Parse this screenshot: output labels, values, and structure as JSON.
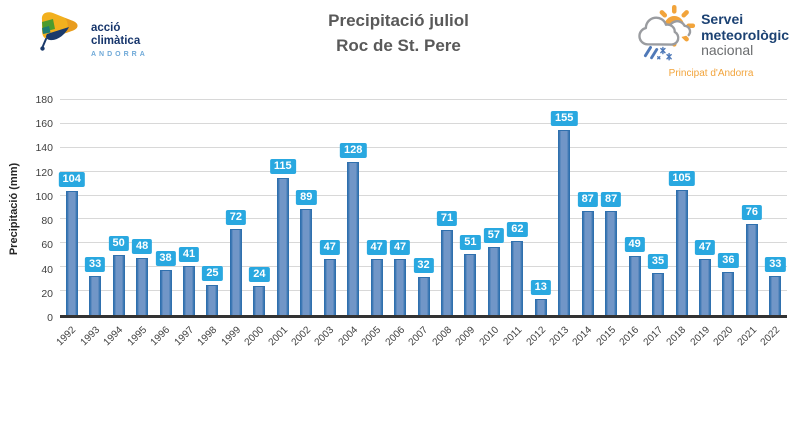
{
  "header": {
    "left_logo": {
      "line1": "acció",
      "line2": "climàtica",
      "line3": "ANDORRA"
    },
    "title_line1": "Precipitació juliol",
    "title_line2": "Roc de St. Pere",
    "right_logo": {
      "line1": "Servei",
      "line2": "meteorològic",
      "line3": "nacional",
      "subtitle": "Principat d'Andorra"
    }
  },
  "chart_data": {
    "type": "bar",
    "title": "Precipitació juliol Roc de St. Pere",
    "categories": [
      "1992",
      "1993",
      "1994",
      "1995",
      "1996",
      "1997",
      "1998",
      "1999",
      "2000",
      "2001",
      "2002",
      "2003",
      "2004",
      "2005",
      "2006",
      "2007",
      "2008",
      "2009",
      "2010",
      "2011",
      "2012",
      "2013",
      "2014",
      "2015",
      "2016",
      "2017",
      "2018",
      "2019",
      "2020",
      "2021",
      "2022"
    ],
    "values": [
      104,
      33,
      50,
      48,
      38,
      41,
      25,
      72,
      24,
      115,
      89,
      47,
      128,
      47,
      47,
      32,
      71,
      51,
      57,
      62,
      13,
      155,
      87,
      87,
      49,
      35,
      105,
      47,
      36,
      76,
      33
    ],
    "xlabel": "",
    "ylabel": "Precipitació (mm)",
    "ylim": [
      0,
      180
    ],
    "ytick_step": 20,
    "yticks": [
      0,
      20,
      40,
      60,
      80,
      100,
      120,
      140,
      160,
      180
    ],
    "grid": true,
    "legend": "none",
    "bar_color": "#7196C7",
    "bar_border": "#2F70AE",
    "label_bg": "#29A8E0",
    "label_color": "#FFFFFF",
    "gridline_color": "#D8D8D8",
    "axis_color": "#333333"
  }
}
